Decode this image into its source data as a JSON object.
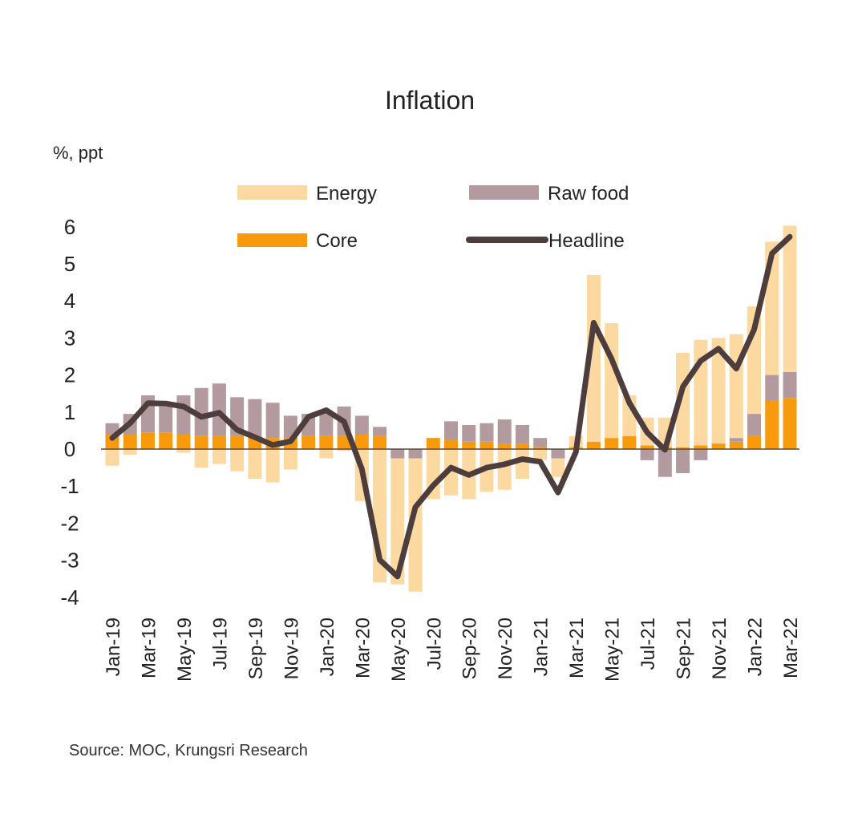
{
  "chart_data": {
    "type": "bar",
    "subtype": "stacked-bar-with-line",
    "title": "Inflation",
    "ylabel": "%, ppt",
    "xlabel": "",
    "ylim": [
      -4,
      6
    ],
    "yticks": [
      6,
      5,
      4,
      3,
      2,
      1,
      0,
      -1,
      -2,
      -3,
      -4
    ],
    "grid": false,
    "legend_position": "top",
    "source": "Source:  MOC, Krungsri Research",
    "categories": [
      "Jan-19",
      "Feb-19",
      "Mar-19",
      "Apr-19",
      "May-19",
      "Jun-19",
      "Jul-19",
      "Aug-19",
      "Sep-19",
      "Oct-19",
      "Nov-19",
      "Dec-19",
      "Jan-20",
      "Feb-20",
      "Mar-20",
      "Apr-20",
      "May-20",
      "Jun-20",
      "Jul-20",
      "Aug-20",
      "Sep-20",
      "Oct-20",
      "Nov-20",
      "Dec-20",
      "Jan-21",
      "Feb-21",
      "Mar-21",
      "Apr-21",
      "May-21",
      "Jun-21",
      "Jul-21",
      "Aug-21",
      "Sep-21",
      "Oct-21",
      "Nov-21",
      "Dec-21",
      "Jan-22",
      "Feb-22",
      "Mar-22"
    ],
    "xtick_labels": [
      "Jan-19",
      "Mar-19",
      "May-19",
      "Jul-19",
      "Sep-19",
      "Nov-19",
      "Jan-20",
      "Mar-20",
      "May-20",
      "Jul-20",
      "Sep-20",
      "Nov-20",
      "Jan-21",
      "Mar-21",
      "May-21",
      "Jul-21",
      "Sep-21",
      "Nov-21",
      "Jan-22",
      "Mar-22"
    ],
    "series": [
      {
        "name": "Core",
        "kind": "bar",
        "color": "#F79A0E",
        "values": [
          0.4,
          0.4,
          0.45,
          0.45,
          0.4,
          0.35,
          0.35,
          0.35,
          0.3,
          0.3,
          0.3,
          0.35,
          0.35,
          0.35,
          0.4,
          0.35,
          0.0,
          0.0,
          0.3,
          0.25,
          0.2,
          0.2,
          0.15,
          0.15,
          0.05,
          0.0,
          0.05,
          0.2,
          0.3,
          0.35,
          0.1,
          0.05,
          0.05,
          0.1,
          0.15,
          0.2,
          0.35,
          1.3,
          1.38
        ]
      },
      {
        "name": "Raw food",
        "kind": "bar",
        "color": "#B39A9E",
        "values": [
          0.3,
          0.55,
          1.0,
          0.7,
          1.05,
          1.3,
          1.42,
          1.05,
          1.05,
          0.95,
          0.6,
          0.6,
          0.65,
          0.8,
          0.5,
          0.25,
          -0.25,
          -0.25,
          0.0,
          0.5,
          0.45,
          0.5,
          0.65,
          0.5,
          0.25,
          -0.25,
          0.0,
          0.0,
          0.0,
          0.0,
          -0.3,
          -0.75,
          -0.65,
          -0.3,
          0.0,
          0.1,
          0.6,
          0.7,
          0.7
        ]
      },
      {
        "name": "Energy",
        "kind": "bar",
        "color": "#FDD9A2",
        "values": [
          -0.45,
          -0.15,
          0.0,
          0.0,
          -0.1,
          -0.5,
          -0.4,
          -0.6,
          -0.8,
          -0.9,
          -0.55,
          0.0,
          -0.25,
          -0.05,
          -1.4,
          -3.6,
          -3.4,
          -3.6,
          -1.35,
          -1.25,
          -1.35,
          -1.15,
          -1.1,
          -0.8,
          -0.3,
          -0.5,
          0.3,
          4.5,
          3.1,
          1.1,
          0.75,
          0.8,
          2.55,
          2.85,
          2.85,
          2.8,
          2.9,
          3.6,
          3.95
        ]
      },
      {
        "name": "Headline",
        "kind": "line",
        "color": "#4D3E3D",
        "values": [
          0.3,
          0.7,
          1.24,
          1.23,
          1.15,
          0.87,
          0.98,
          0.52,
          0.32,
          0.11,
          0.21,
          0.87,
          1.05,
          0.74,
          -0.54,
          -2.99,
          -3.44,
          -1.57,
          -0.98,
          -0.5,
          -0.7,
          -0.5,
          -0.41,
          -0.27,
          -0.34,
          -1.17,
          -0.08,
          3.41,
          2.44,
          1.25,
          0.45,
          -0.02,
          1.68,
          2.38,
          2.71,
          2.17,
          3.23,
          5.28,
          5.73
        ]
      }
    ],
    "legend": [
      {
        "label": "Energy",
        "marker": "bar",
        "color": "#FDD9A2"
      },
      {
        "label": "Raw food",
        "marker": "bar",
        "color": "#B39A9E"
      },
      {
        "label": "Core",
        "marker": "bar",
        "color": "#F79A0E"
      },
      {
        "label": "Headline",
        "marker": "line",
        "color": "#4D3E3D"
      }
    ]
  }
}
